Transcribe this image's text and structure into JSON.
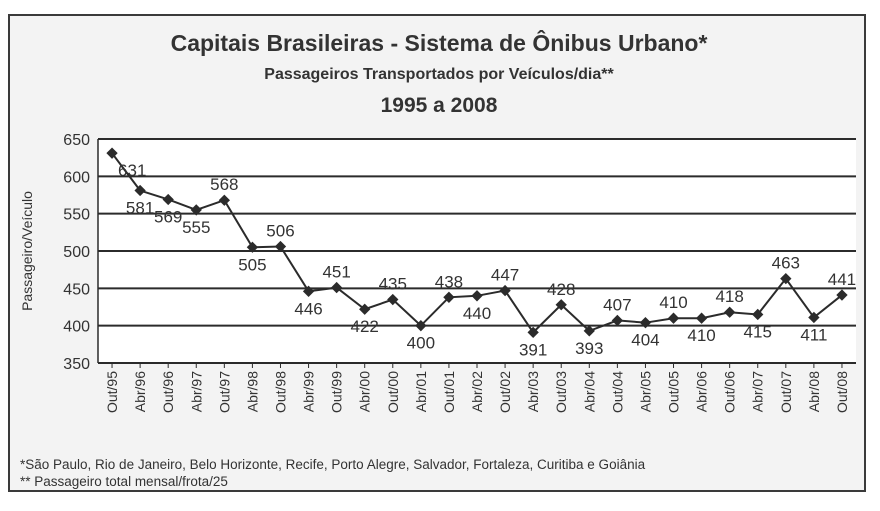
{
  "chart_data": {
    "type": "line",
    "title": "Capitais Brasileiras - Sistema de Ônibus Urbano*",
    "subtitle": "Passageiros Transportados por Veículos/dia**",
    "period": "1995 a 2008",
    "ylabel": "Passageiro/Veículo",
    "xlabel": "",
    "ylim": [
      350,
      650
    ],
    "yticks": [
      350,
      400,
      450,
      500,
      550,
      600,
      650
    ],
    "grid": "horizontal",
    "categories": [
      "Out/95",
      "Abr/96",
      "Out/96",
      "Abr/97",
      "Out/97",
      "Abr/98",
      "Out/98",
      "Abr/99",
      "Out/99",
      "Abr/00",
      "Out/00",
      "Abr/01",
      "Out/01",
      "Abr/02",
      "Out/02",
      "Abr/03",
      "Out/03",
      "Abr/04",
      "Out/04",
      "Abr/05",
      "Out/05",
      "Abr/06",
      "Out/06",
      "Abr/07",
      "Out/07",
      "Abr/08",
      "Out/08"
    ],
    "values": [
      631,
      581,
      569,
      555,
      568,
      505,
      506,
      446,
      451,
      422,
      435,
      400,
      438,
      440,
      447,
      391,
      428,
      393,
      407,
      404,
      410,
      410,
      418,
      415,
      463,
      411,
      441
    ],
    "line_color": "#2b2b2b"
  },
  "footnotes": [
    "*São Paulo, Rio de Janeiro, Belo Horizonte, Recife, Porto Alegre, Salvador, Fortaleza, Curitiba e Goiânia",
    "** Passageiro total mensal/frota/25"
  ]
}
